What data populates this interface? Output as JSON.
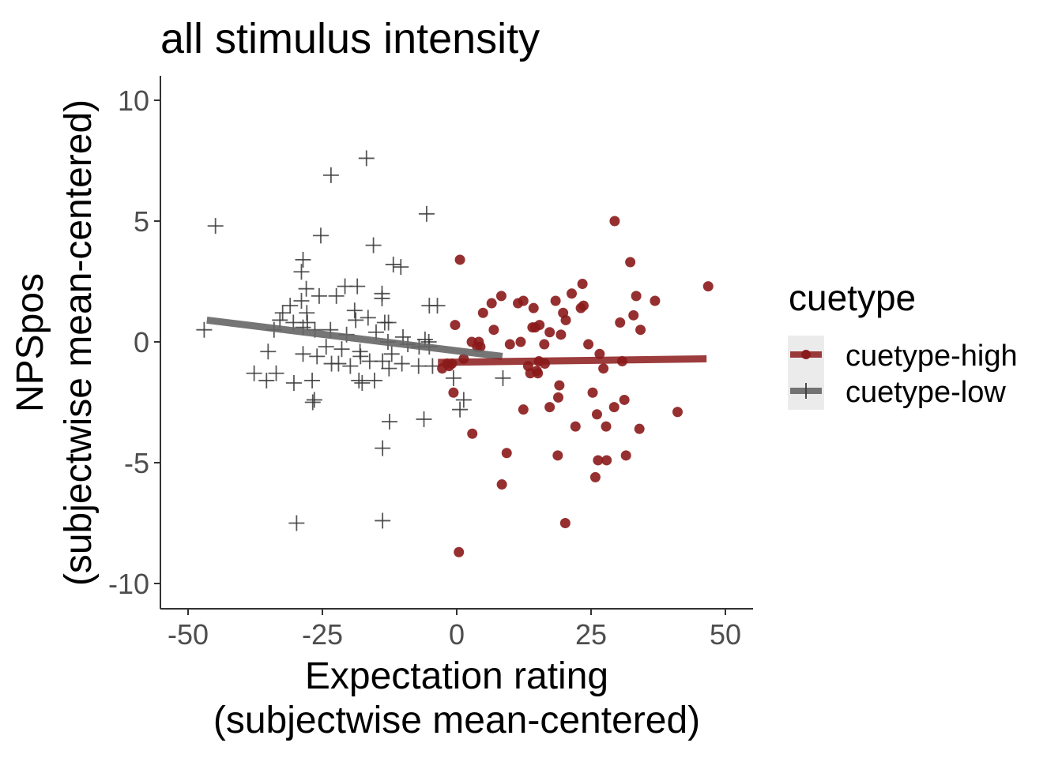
{
  "chart_data": {
    "type": "scatter",
    "title": "all stimulus intensity",
    "xlabel_line1": "Expectation rating",
    "xlabel_line2": "(subjectwise mean-centered)",
    "ylabel_line1": "NPSpos",
    "ylabel_line2": "(subjectwise mean-centered)",
    "xlim": [
      -55,
      55
    ],
    "ylim": [
      -11,
      11
    ],
    "x_ticks": [
      -50,
      -25,
      0,
      25,
      50
    ],
    "x_tick_labels": [
      "-50",
      "-25",
      "0",
      "25",
      "50"
    ],
    "y_ticks": [
      -10,
      -5,
      0,
      5,
      10
    ],
    "y_tick_labels": [
      "-10",
      "-5",
      "0",
      "5",
      "10"
    ],
    "grid": false,
    "legend": {
      "title": "cuetype",
      "placement": "right",
      "entries": [
        "cuetype-high",
        "cuetype-low"
      ]
    },
    "series": [
      {
        "name": "cuetype-high",
        "marker": "circle",
        "color": "#8b1a1a",
        "fit_line": {
          "x": [
            -3.5,
            46.5
          ],
          "y": [
            -0.85,
            -0.7
          ]
        },
        "points": [
          [
            46.8,
            2.3
          ],
          [
            29.4,
            5.0
          ],
          [
            32.3,
            3.3
          ],
          [
            0.6,
            3.4
          ],
          [
            23.4,
            2.4
          ],
          [
            21.4,
            2.0
          ],
          [
            8.3,
            1.9
          ],
          [
            33.4,
            1.9
          ],
          [
            6.5,
            1.6
          ],
          [
            11.4,
            1.6
          ],
          [
            12.4,
            1.7
          ],
          [
            18.4,
            1.7
          ],
          [
            36.9,
            1.7
          ],
          [
            14.3,
            1.4
          ],
          [
            23.6,
            1.5
          ],
          [
            4.9,
            1.2
          ],
          [
            19.8,
            1.2
          ],
          [
            23.1,
            1.4
          ],
          [
            20.3,
            0.9
          ],
          [
            32.9,
            1.1
          ],
          [
            30.4,
            0.8
          ],
          [
            -0.3,
            0.7
          ],
          [
            14.6,
            0.6
          ],
          [
            14.1,
            0.6
          ],
          [
            15.4,
            0.7
          ],
          [
            6.9,
            0.5
          ],
          [
            34.2,
            0.5
          ],
          [
            17.3,
            0.4
          ],
          [
            19.4,
            0.3
          ],
          [
            2.8,
            0.0
          ],
          [
            4.1,
            0.0
          ],
          [
            11.9,
            0.0
          ],
          [
            9.9,
            -0.1
          ],
          [
            16.3,
            -0.1
          ],
          [
            4.4,
            -0.2
          ],
          [
            3.8,
            -0.2
          ],
          [
            24.5,
            -0.1
          ],
          [
            26.6,
            -0.5
          ],
          [
            30.8,
            -0.8
          ],
          [
            16.4,
            -0.9
          ],
          [
            15.3,
            -0.8
          ],
          [
            13.3,
            -1.0
          ],
          [
            1.3,
            -0.7
          ],
          [
            -1.8,
            -0.9
          ],
          [
            -0.9,
            -0.9
          ],
          [
            -2.7,
            -1.1
          ],
          [
            -1.4,
            -1.0
          ],
          [
            27.3,
            -1.1
          ],
          [
            13.7,
            -1.3
          ],
          [
            15.1,
            -1.3
          ],
          [
            14.9,
            -1.2
          ],
          [
            19.1,
            -1.8
          ],
          [
            -0.6,
            -2.1
          ],
          [
            18.9,
            -2.3
          ],
          [
            25.3,
            -2.1
          ],
          [
            31.2,
            -2.4
          ],
          [
            12.4,
            -2.8
          ],
          [
            17.3,
            -2.7
          ],
          [
            29.3,
            -2.7
          ],
          [
            26.1,
            -3.0
          ],
          [
            41.1,
            -2.9
          ],
          [
            22.1,
            -3.5
          ],
          [
            27.8,
            -3.5
          ],
          [
            34.0,
            -3.6
          ],
          [
            2.9,
            -3.8
          ],
          [
            9.3,
            -4.6
          ],
          [
            18.8,
            -4.7
          ],
          [
            26.3,
            -4.9
          ],
          [
            27.9,
            -4.9
          ],
          [
            31.5,
            -4.7
          ],
          [
            25.8,
            -5.6
          ],
          [
            8.4,
            -5.9
          ],
          [
            20.2,
            -7.5
          ],
          [
            0.4,
            -8.7
          ]
        ]
      },
      {
        "name": "cuetype-low",
        "marker": "plus",
        "color": "#3a3a3a",
        "fit_line": {
          "x": [
            -46.5,
            8.5
          ],
          "y": [
            0.9,
            -0.6
          ]
        },
        "points": [
          [
            -16.8,
            7.6
          ],
          [
            -23.4,
            6.9
          ],
          [
            -5.6,
            5.3
          ],
          [
            -44.9,
            4.8
          ],
          [
            -25.3,
            4.4
          ],
          [
            -15.5,
            4.0
          ],
          [
            -28.6,
            3.4
          ],
          [
            -11.8,
            3.2
          ],
          [
            -10.4,
            3.1
          ],
          [
            -28.9,
            2.9
          ],
          [
            -28.0,
            2.2
          ],
          [
            -20.8,
            2.3
          ],
          [
            -18.5,
            2.3
          ],
          [
            -13.9,
            2.0
          ],
          [
            -25.6,
            1.9
          ],
          [
            -22.4,
            1.9
          ],
          [
            -28.9,
            1.7
          ],
          [
            -13.9,
            1.8
          ],
          [
            -31.0,
            1.5
          ],
          [
            -5.1,
            1.5
          ],
          [
            -3.6,
            1.5
          ],
          [
            -19.0,
            1.3
          ],
          [
            -27.9,
            1.2
          ],
          [
            -32.4,
            1.2
          ],
          [
            -16.5,
            1.0
          ],
          [
            -32.9,
            0.9
          ],
          [
            -18.8,
            0.9
          ],
          [
            -30.4,
            0.8
          ],
          [
            -27.8,
            0.8
          ],
          [
            -28.6,
            0.6
          ],
          [
            -26.4,
            0.5
          ],
          [
            -13.4,
            0.8
          ],
          [
            -12.7,
            0.8
          ],
          [
            -47.0,
            0.5
          ],
          [
            -23.5,
            0.5
          ],
          [
            -34.0,
            0.5
          ],
          [
            -15.0,
            0.4
          ],
          [
            -20.5,
            0.3
          ],
          [
            -10.0,
            0.2
          ],
          [
            -5.9,
            0.1
          ],
          [
            -5.2,
            0.0
          ],
          [
            -12.8,
            0.0
          ],
          [
            -9.1,
            -0.1
          ],
          [
            -7.0,
            -0.2
          ],
          [
            -5.1,
            -0.2
          ],
          [
            -24.3,
            -0.2
          ],
          [
            -21.4,
            -0.3
          ],
          [
            -18.0,
            -0.4
          ],
          [
            -35.1,
            -0.4
          ],
          [
            -28.6,
            -0.5
          ],
          [
            -12.1,
            -0.5
          ],
          [
            -26.0,
            -0.6
          ],
          [
            -17.9,
            -0.6
          ],
          [
            -13.8,
            -0.8
          ],
          [
            -16.2,
            -0.8
          ],
          [
            -23.3,
            -0.9
          ],
          [
            -22.0,
            -0.9
          ],
          [
            -19.8,
            -1.0
          ],
          [
            -10.2,
            -0.9
          ],
          [
            -12.6,
            -1.1
          ],
          [
            -7.1,
            -1.0
          ],
          [
            -4.5,
            -1.0
          ],
          [
            -37.7,
            -1.3
          ],
          [
            -33.6,
            -1.3
          ],
          [
            -35.4,
            -1.6
          ],
          [
            -30.3,
            -1.7
          ],
          [
            -26.9,
            -1.6
          ],
          [
            -18.2,
            -1.6
          ],
          [
            -17.6,
            -1.7
          ],
          [
            -15.3,
            -1.6
          ],
          [
            -0.6,
            -1.5
          ],
          [
            8.6,
            -1.5
          ],
          [
            -26.5,
            -2.4
          ],
          [
            -26.8,
            -2.5
          ],
          [
            1.3,
            -2.4
          ],
          [
            0.6,
            -2.8
          ],
          [
            -6.1,
            -3.2
          ],
          [
            -12.5,
            -3.3
          ],
          [
            -13.8,
            -4.4
          ],
          [
            -13.8,
            -7.4
          ],
          [
            -29.8,
            -7.5
          ]
        ]
      }
    ]
  }
}
